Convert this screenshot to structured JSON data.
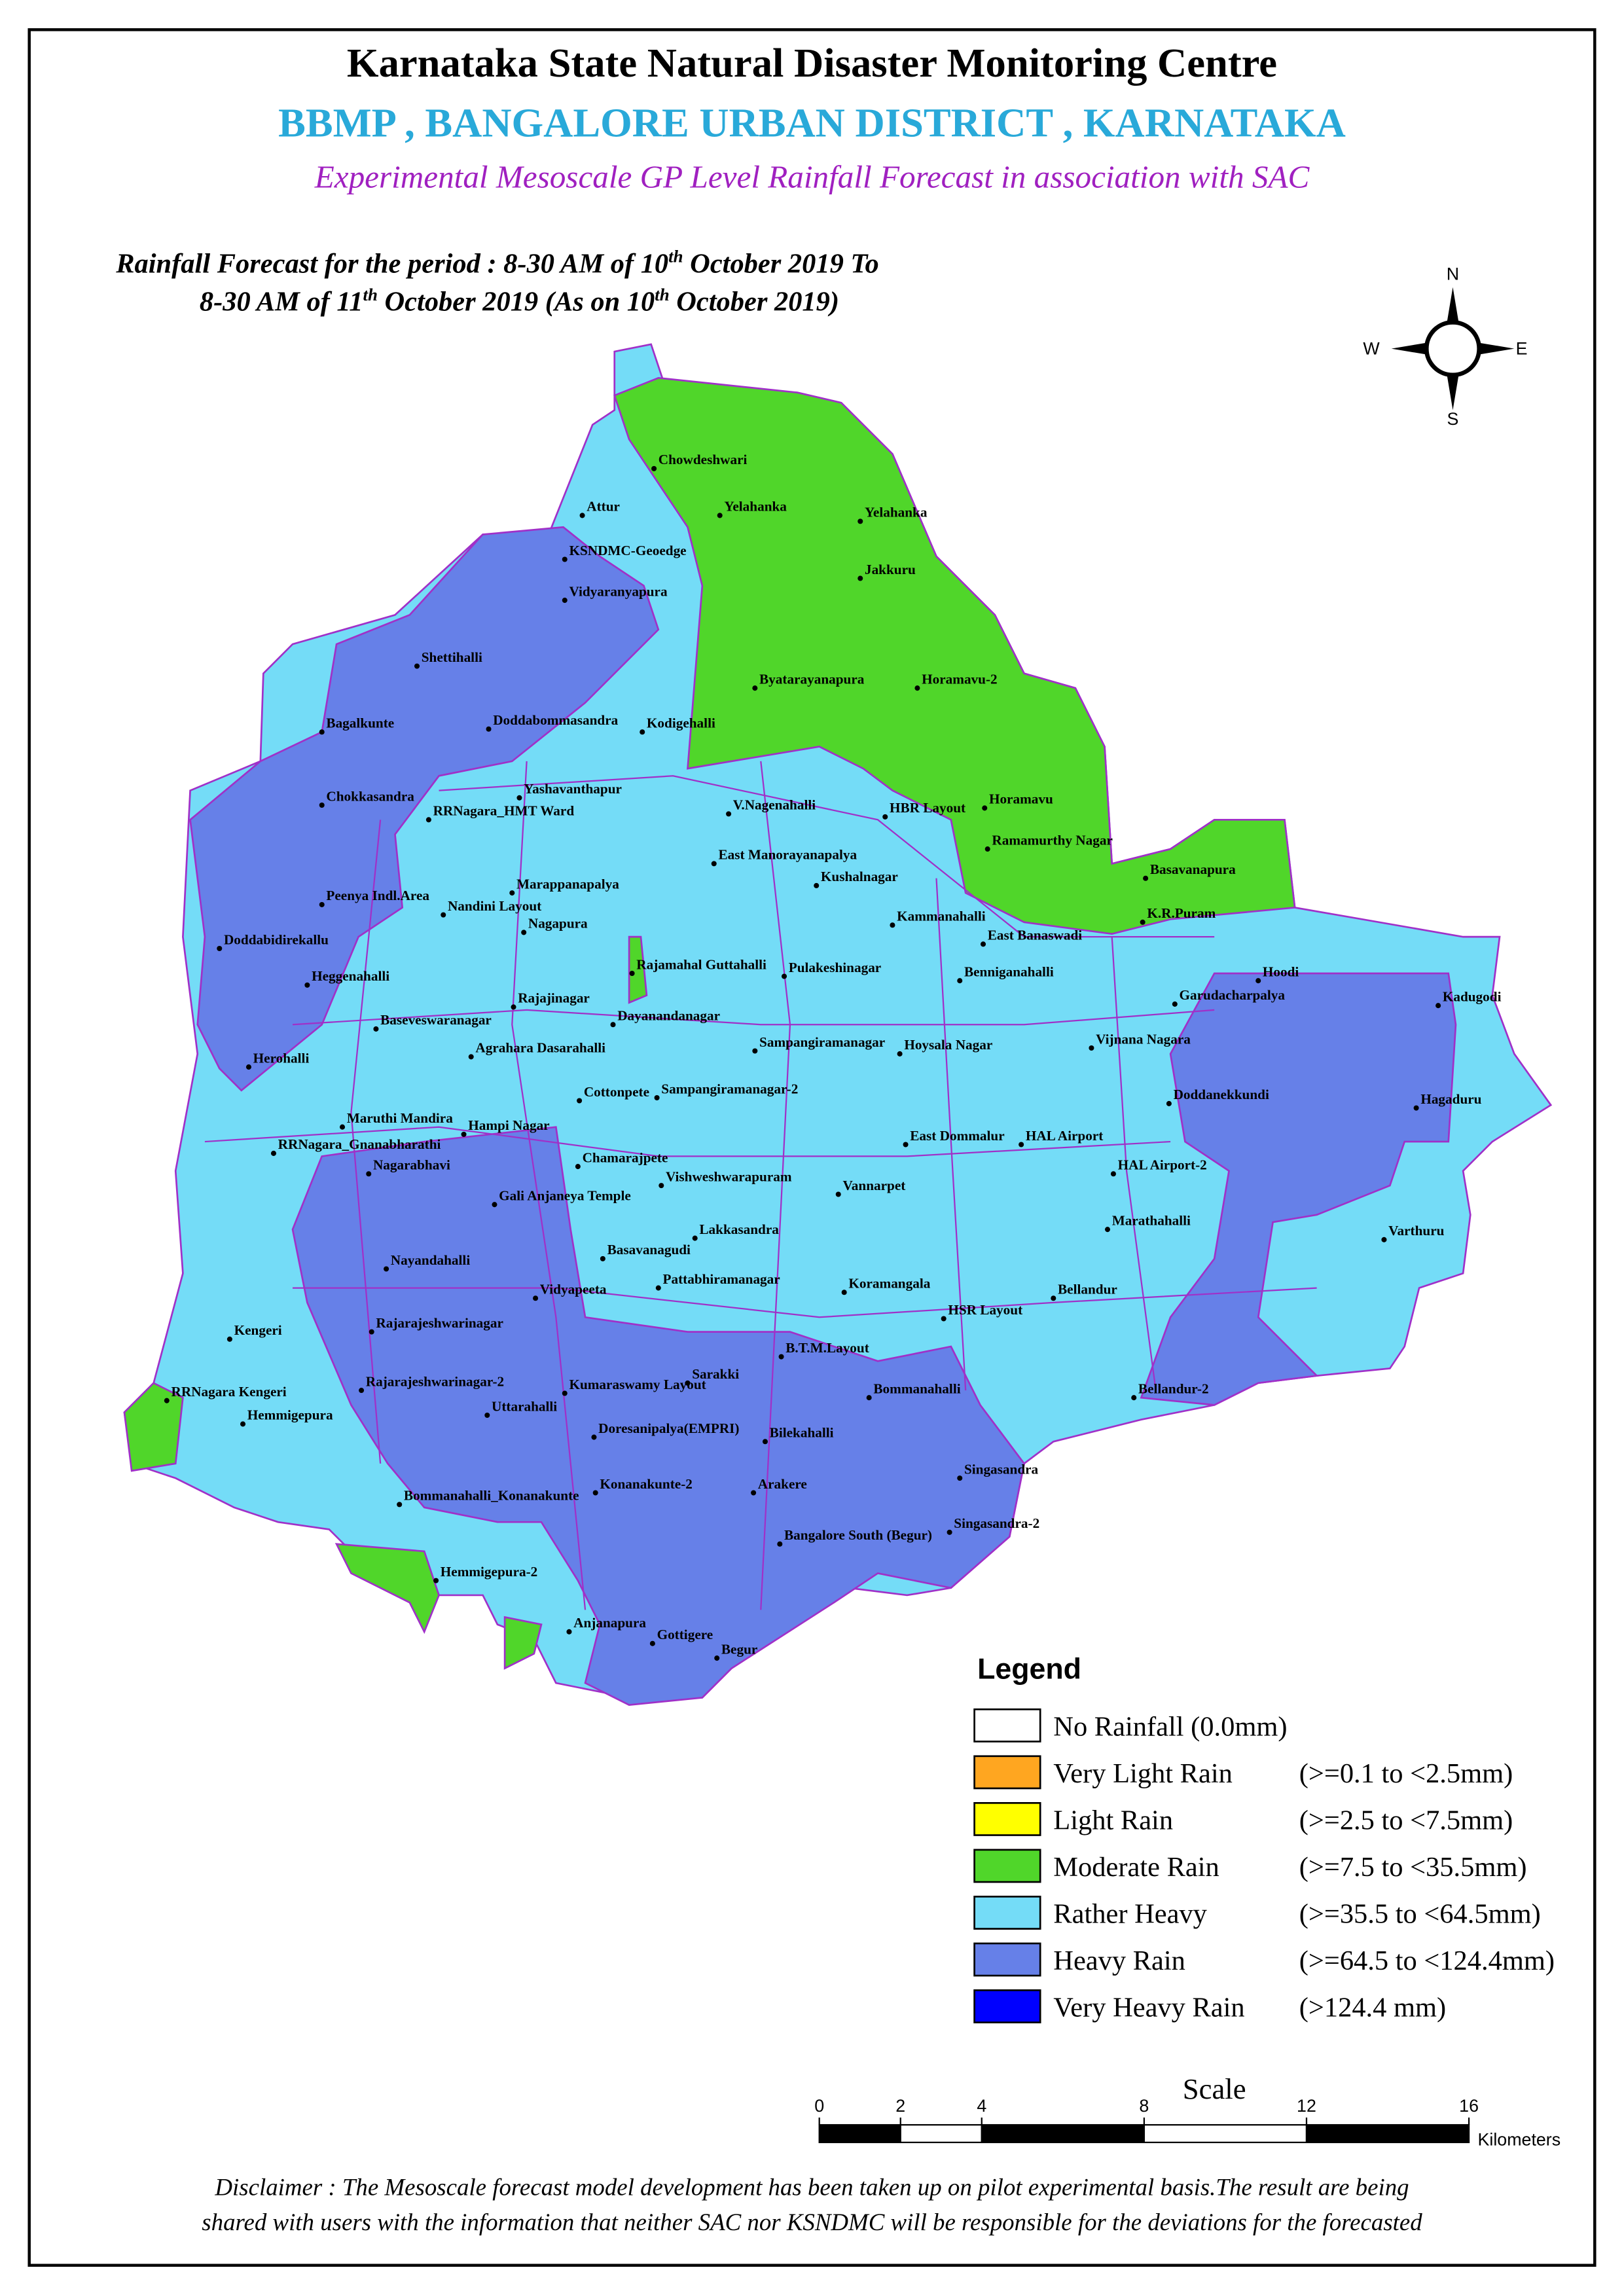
{
  "header": {
    "title": "Karnataka State Natural Disaster Monitoring Centre",
    "subtitle": "BBMP , BANGALORE  URBAN DISTRICT , KARNATAKA",
    "description": "Experimental Mesoscale GP Level Rainfall Forecast in association with SAC"
  },
  "forecast_period": {
    "line1": [
      "Rainfall Forecast for the period : 8-30 AM of 10",
      "th",
      " October 2019 To"
    ],
    "line2": [
      "8-30 AM of 11",
      "th",
      " October 2019 (As on 10",
      "th",
      " October 2019)"
    ]
  },
  "compass": {
    "north": "N",
    "west": "W",
    "east": "E",
    "south": "S"
  },
  "places": [
    "Chowdeshwari",
    "Attur",
    "Yelahanka",
    "Yelahanka",
    "KSNDMC-Geoedge",
    "Jakkuru",
    "Vidyaranyapura",
    "Shettihalli",
    "Byatarayanapura",
    "Horamavu-2",
    "Bagalkunte",
    "Doddabommasandra",
    "Kodigehalli",
    "Yashavanthapur",
    "Chokkasandra",
    "RRNagara_HMT Ward",
    "V.Nagenahalli",
    "HBR Layout",
    "Horamavu",
    "Ramamurthy Nagar",
    "East Manorayanapalya",
    "Kushalnagar",
    "Basavanapura",
    "Marappanapalya",
    "Peenya Indl.Area",
    "Nandini Layout",
    "K.R.Puram",
    "Kammanahalli",
    "Nagapura",
    "East Banaswadi",
    "Doddabidirekallu",
    "Rajamahal Guttahalli",
    "Pulakeshinagar",
    "Benniganahalli",
    "Hoodi",
    "Heggenahalli",
    "Kadugodi",
    "Garudacharpalya",
    "Rajajinagar",
    "Dayanandanagar",
    "Baseveswaranagar",
    "Agrahara Dasarahalli",
    "Sampangiramanagar",
    "Hoysala Nagar",
    "Vijnana Nagara",
    "Herohalli",
    "Cottonpete",
    "Sampangiramanagar-2",
    "Doddanekkundi",
    "Hagaduru",
    "Maruthi Mandira",
    "Hampi Nagar",
    "RRNagara_Gnanabharathi",
    "East Dommalur",
    "HAL Airport",
    "Nagarabhavi",
    "Chamarajpete",
    "HAL Airport-2",
    "Vishweshwarapuram",
    "Vannarpet",
    "Gali Anjaneya Temple",
    "Marathahalli",
    "Lakkasandra",
    "Varthuru",
    "Basavanagudi",
    "Nayandahalli",
    "Pattabhiramanagar",
    "Koramangala",
    "Vidyapeeta",
    "Bellandur",
    "HSR Layout",
    "Rajarajeshwarinagar",
    "Kengeri",
    "B.T.M.Layout",
    "Sarakki",
    "Kumaraswamy Layout",
    "Rajarajeshwarinagar-2",
    "Bommanahalli",
    "RRNagara Kengeri",
    "Bellandur-2",
    "Uttarahalli",
    "Hemmigepura",
    "Doresanipalya(EMPRI)",
    "Bilekahalli",
    "Singasandra",
    "Konanakunte-2",
    "Arakere",
    "Bommanahalli_Konanakunte",
    "Bangalore South (Begur)",
    "Singasandra-2",
    "Hemmigepura-2",
    "Anjanapura",
    "Gottigere",
    "Begur"
  ],
  "legend": {
    "title": "Legend",
    "items": [
      {
        "label": "No Rainfall (0.0mm)",
        "color": "#ffffff"
      },
      {
        "label": "Very Light Rain",
        "range": "(>=0.1 to <2.5mm)",
        "color": "#ffa620"
      },
      {
        "label": " Light Rain",
        "range": "(>=2.5 to <7.5mm)",
        "color": "#ffff00"
      },
      {
        "label": "Moderate Rain",
        "range": "(>=7.5 to <35.5mm)",
        "color": "#50d62a"
      },
      {
        "label": "Rather Heavy",
        "range": "(>=35.5 to <64.5mm)",
        "color": "#74dcf7"
      },
      {
        "label": "Heavy Rain",
        "range": "(>=64.5 to <124.4mm)",
        "color": "#6680e8"
      },
      {
        "label": "Very Heavy Rain",
        "range": "(>124.4 mm)",
        "color": "#0000ff"
      }
    ]
  },
  "scale": {
    "title": "Scale",
    "ticks": [
      0,
      2,
      4,
      8,
      12,
      16
    ],
    "unit": "Kilometers"
  },
  "disclaimer": [
    "Disclaimer : The Mesoscale forecast model development has been taken up on pilot experimental basis.The result are being",
    "shared with users with the information that neither SAC nor KSNDMC will be responsible for the deviations for the forecasted"
  ]
}
